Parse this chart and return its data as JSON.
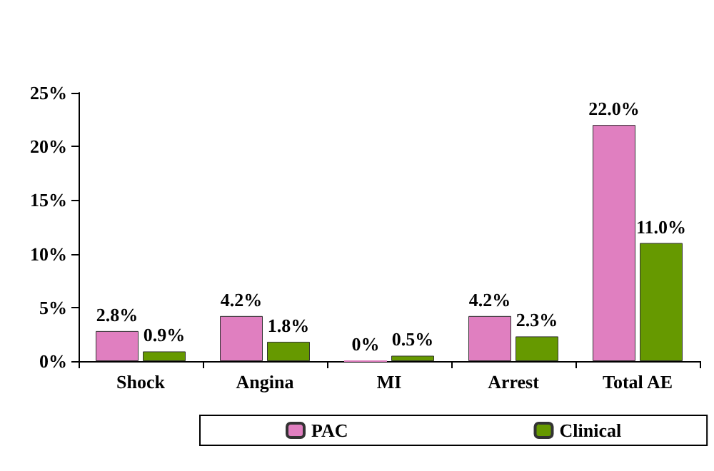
{
  "chart_data": {
    "type": "bar",
    "categories": [
      "Shock",
      "Angina",
      "MI",
      "Arrest",
      "Total AE"
    ],
    "series": [
      {
        "name": "PAC",
        "color": "#e07fc0",
        "values": [
          2.8,
          4.2,
          0,
          4.2,
          22.0
        ],
        "value_labels": [
          "2.8%",
          "4.2%",
          "0%",
          "4.2%",
          "22.0%"
        ]
      },
      {
        "name": "Clinical",
        "color": "#669900",
        "values": [
          0.9,
          1.8,
          0.5,
          2.3,
          11.0
        ],
        "value_labels": [
          "0.9%",
          "1.8%",
          "0.5%",
          "2.3%",
          "11.0%"
        ]
      }
    ],
    "ylim": [
      0,
      25
    ],
    "yticks": [
      {
        "value": 0,
        "label": "0%"
      },
      {
        "value": 5,
        "label": "5%"
      },
      {
        "value": 10,
        "label": "10%"
      },
      {
        "value": 15,
        "label": "15%"
      },
      {
        "value": 20,
        "label": "20%"
      },
      {
        "value": 25,
        "label": "25%"
      }
    ],
    "grid": false,
    "legend": "bottom"
  }
}
